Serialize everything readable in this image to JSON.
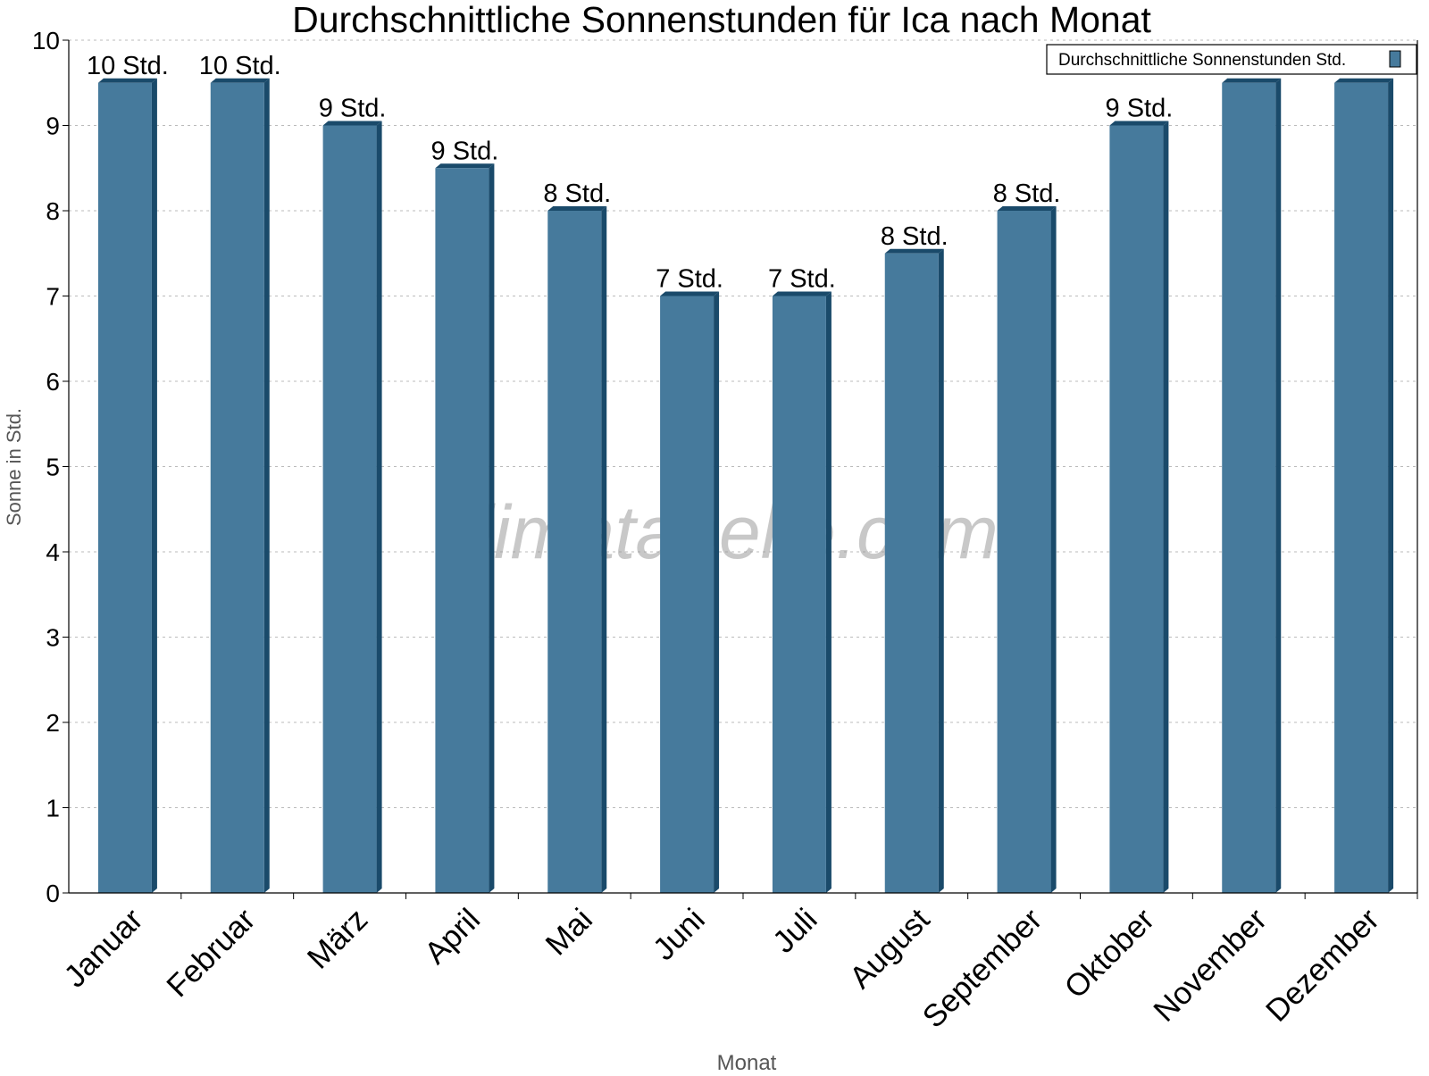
{
  "chart_data": {
    "type": "bar",
    "title": "Durchschnittliche Sonnenstunden für Ica nach Monat",
    "xlabel": "Monat",
    "ylabel": "Sonne in Std.",
    "ylim": [
      0,
      10
    ],
    "yticks": [
      "0",
      "1",
      "2",
      "3",
      "4",
      "5",
      "6",
      "7",
      "8",
      "9",
      "10"
    ],
    "grid": true,
    "legend_position": "top-right",
    "categories": [
      "Januar",
      "Februar",
      "März",
      "April",
      "Mai",
      "Juni",
      "Juli",
      "August",
      "September",
      "Oktober",
      "November",
      "Dezember"
    ],
    "series": [
      {
        "name": "Durchschnittliche Sonnenstunden Std.",
        "values": [
          9.5,
          9.5,
          9,
          8.5,
          8,
          7,
          7,
          7.5,
          8,
          9,
          9.5,
          9.5
        ],
        "labels": [
          "10 Std.",
          "10 Std.",
          "9 Std.",
          "9 Std.",
          "8 Std.",
          "7 Std.",
          "7 Std.",
          "8 Std.",
          "8 Std.",
          "9 Std.",
          null,
          null
        ],
        "color": "#467a9c",
        "side_color": "#1a4a6a"
      }
    ],
    "watermark": "klimatabelle.com"
  }
}
